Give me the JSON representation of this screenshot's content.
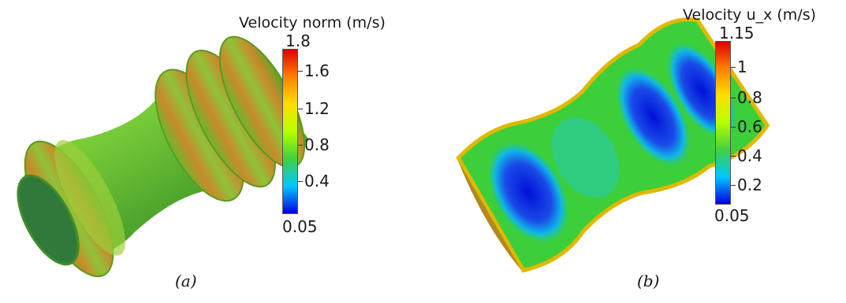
{
  "panels": [
    {
      "caption": "(a)",
      "colorbar": {
        "title": "Velocity norm (m/s)",
        "max_label": "1.8",
        "min_label": "0.05",
        "ticks": [
          "1.6",
          "1.2",
          "0.8",
          "0.4"
        ]
      }
    },
    {
      "caption": "(b)",
      "colorbar": {
        "title": "Velocity u_x (m/s)",
        "max_label": "1.15",
        "min_label": "0.05",
        "ticks": [
          "1",
          "0.8",
          "0.6",
          "0.4",
          "0.2"
        ]
      }
    }
  ],
  "colors": {
    "colormap": [
      "#0000e0",
      "#00c8ff",
      "#40d040",
      "#b8ff00",
      "#ffe000",
      "#ff8000",
      "#e00000"
    ]
  }
}
